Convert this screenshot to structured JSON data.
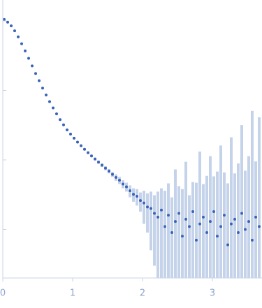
{
  "chart_data": {
    "type": "scatter",
    "x": [
      0.02,
      0.07,
      0.12,
      0.17,
      0.22,
      0.27,
      0.32,
      0.37,
      0.42,
      0.47,
      0.52,
      0.57,
      0.62,
      0.67,
      0.72,
      0.77,
      0.82,
      0.87,
      0.92,
      0.97,
      1.02,
      1.07,
      1.12,
      1.17,
      1.22,
      1.27,
      1.32,
      1.37,
      1.42,
      1.47,
      1.52,
      1.57,
      1.62,
      1.67,
      1.72,
      1.77,
      1.82,
      1.87,
      1.92,
      1.97,
      2.02,
      2.07,
      2.12,
      2.17,
      2.22,
      2.27,
      2.32,
      2.37,
      2.42,
      2.47,
      2.52,
      2.57,
      2.62,
      2.67,
      2.72,
      2.77,
      2.82,
      2.87,
      2.92,
      2.97,
      3.02,
      3.07,
      3.12,
      3.17,
      3.22,
      3.27,
      3.32,
      3.37,
      3.42,
      3.47,
      3.52,
      3.57,
      3.62,
      3.67
    ],
    "values": [
      10.5,
      9.6,
      8.5,
      7.2,
      5.9,
      4.7,
      3.7,
      2.9,
      2.25,
      1.75,
      1.38,
      1.08,
      0.86,
      0.69,
      0.56,
      0.46,
      0.38,
      0.32,
      0.27,
      0.235,
      0.205,
      0.18,
      0.16,
      0.142,
      0.127,
      0.114,
      0.103,
      0.093,
      0.084,
      0.076,
      0.069,
      0.062,
      0.056,
      0.051,
      0.045,
      0.041,
      0.036,
      0.032,
      0.03,
      0.026,
      0.024,
      0.021,
      0.02,
      0.017,
      0.015,
      0.019,
      0.011,
      0.016,
      0.009,
      0.013,
      0.017,
      0.008,
      0.014,
      0.011,
      0.018,
      0.007,
      0.012,
      0.015,
      0.009,
      0.013,
      0.018,
      0.008,
      0.011,
      0.016,
      0.006,
      0.012,
      0.014,
      0.009,
      0.017,
      0.01,
      0.013,
      0.007,
      0.015,
      0.011
    ],
    "errors": [
      0.3,
      0.25,
      0.2,
      0.15,
      0.12,
      0.09,
      0.07,
      0.05,
      0.04,
      0.03,
      0.025,
      0.02,
      0.017,
      0.014,
      0.012,
      0.01,
      0.009,
      0.008,
      0.007,
      0.006,
      0.006,
      0.005,
      0.005,
      0.005,
      0.005,
      0.005,
      0.005,
      0.005,
      0.005,
      0.005,
      0.005,
      0.005,
      0.006,
      0.006,
      0.006,
      0.006,
      0.007,
      0.007,
      0.008,
      0.008,
      0.012,
      0.012,
      0.015,
      0.014,
      0.02,
      0.02,
      0.025,
      0.03,
      0.02,
      0.06,
      0.025,
      0.03,
      0.08,
      0.02,
      0.03,
      0.04,
      0.12,
      0.03,
      0.05,
      0.1,
      0.04,
      0.06,
      0.15,
      0.05,
      0.04,
      0.2,
      0.05,
      0.08,
      0.3,
      0.06,
      0.1,
      0.5,
      0.08,
      0.4
    ],
    "color": "#3a63b8",
    "error_color": "#c5d3ea",
    "xlim": [
      0,
      3.71
    ],
    "xticks": [
      0,
      1,
      2,
      3
    ],
    "ylim": [
      0.002,
      20
    ],
    "yticks": [
      0.01,
      0.1,
      1,
      10
    ],
    "ylog": true
  }
}
